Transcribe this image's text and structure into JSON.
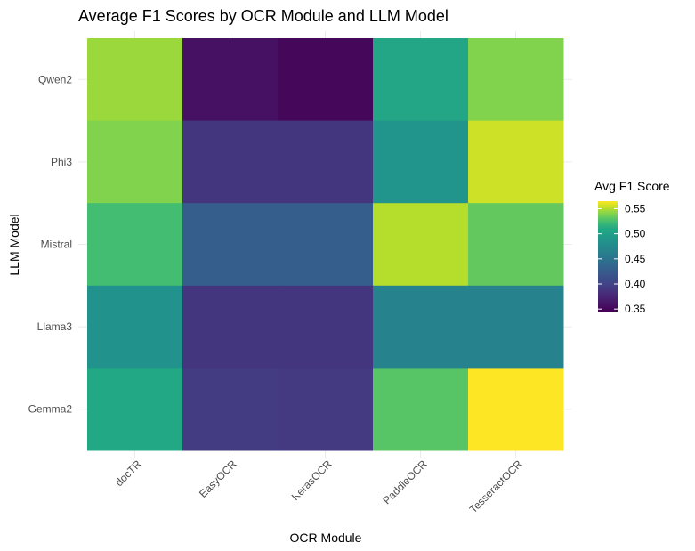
{
  "chart_data": {
    "type": "heatmap",
    "title": "Average F1 Scores by OCR Module and LLM Model",
    "xlabel": "OCR Module",
    "ylabel": "LLM Model",
    "x_categories": [
      "docTR",
      "EasyOCR",
      "KerasOCR",
      "PaddleOCR",
      "TesseractOCR"
    ],
    "y_categories": [
      "Qwen2",
      "Phi3",
      "Mistral",
      "Llama3",
      "Gemma2"
    ],
    "values": [
      [
        0.545,
        0.358,
        0.35,
        0.508,
        0.54
      ],
      [
        0.54,
        0.388,
        0.388,
        0.488,
        0.555
      ],
      [
        0.525,
        0.428,
        0.428,
        0.55,
        0.533
      ],
      [
        0.485,
        0.388,
        0.388,
        0.468,
        0.468
      ],
      [
        0.51,
        0.393,
        0.392,
        0.53,
        0.565
      ]
    ],
    "legend": {
      "title": "Avg F1 Score",
      "ticks": [
        0.55,
        0.5,
        0.45,
        0.4,
        0.35
      ],
      "tick_labels": [
        "0.55",
        "0.50",
        "0.45",
        "0.40",
        "0.35"
      ],
      "min": 0.345,
      "max": 0.565,
      "placement": "right"
    },
    "colormap": "viridis",
    "grid": true,
    "x_tick_rotation": 45
  }
}
